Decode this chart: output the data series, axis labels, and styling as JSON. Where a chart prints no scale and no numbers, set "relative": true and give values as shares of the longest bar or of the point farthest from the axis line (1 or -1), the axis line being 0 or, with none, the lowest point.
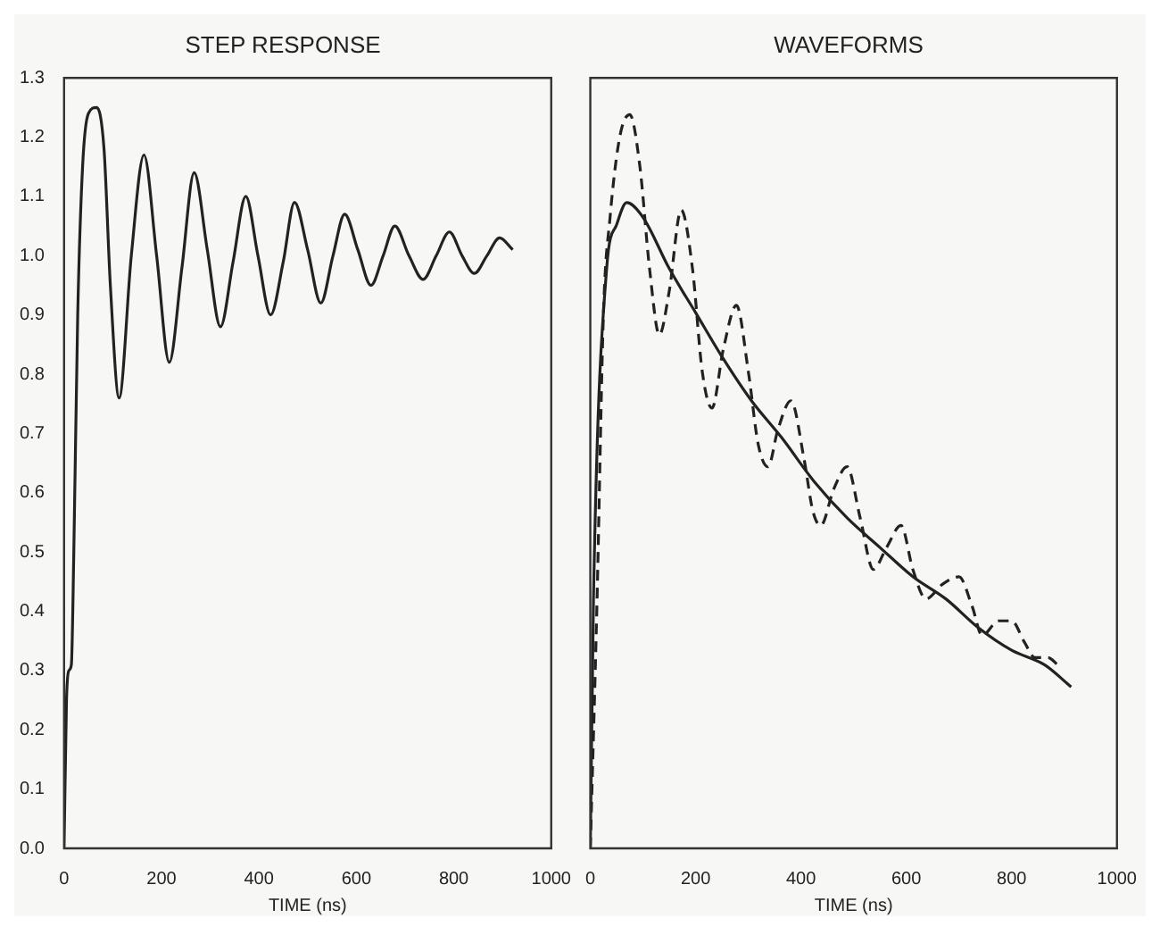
{
  "chart_data": [
    {
      "type": "line",
      "title": "STEP RESPONSE",
      "xlabel": "TIME (ns)",
      "xlim": [
        0,
        1000
      ],
      "xticks": [
        0,
        200,
        400,
        600,
        800,
        1000
      ],
      "ylim": [
        0,
        1.3
      ],
      "yticks": [
        {
          "value": 0,
          "label": "0.0"
        },
        0.1,
        0.2,
        0.3,
        0.4,
        0.5,
        0.6,
        0.7,
        0.8,
        0.9,
        {
          "value": 1,
          "label": "1.0"
        },
        1.1,
        1.2,
        1.3
      ],
      "grid": false,
      "legend": false,
      "marker": "none",
      "series": [
        {
          "color": "#222222",
          "line_style": "solid",
          "x": [
            0,
            5,
            10,
            15,
            20,
            28,
            38,
            50,
            67,
            82,
            95,
            113,
            138,
            164,
            190,
            216,
            242,
            267,
            294,
            321,
            347,
            373,
            398,
            424,
            450,
            473,
            500,
            527,
            552,
            576,
            603,
            630,
            655,
            679,
            708,
            737,
            764,
            791,
            817,
            842,
            868,
            894,
            921
          ],
          "values": [
            0,
            0.25,
            0.3,
            0.31,
            0.5,
            0.9,
            1.15,
            1.24,
            1.25,
            1.18,
            0.95,
            0.76,
            1.0,
            1.17,
            1.0,
            0.82,
            0.98,
            1.14,
            1.01,
            0.88,
            0.99,
            1.1,
            1.0,
            0.9,
            0.99,
            1.09,
            1.01,
            0.92,
            1.0,
            1.07,
            1.01,
            0.95,
            1.0,
            1.05,
            1.0,
            0.96,
            1.0,
            1.04,
            1.0,
            0.97,
            1.0,
            1.03,
            1.01
          ]
        }
      ]
    },
    {
      "type": "line",
      "title": "WAVEFORMS",
      "xlabel": "TIME (ns)",
      "xlim": [
        0,
        1000
      ],
      "xticks": [
        0,
        200,
        400,
        600,
        800,
        1000
      ],
      "relative": true,
      "tick_labels": "x",
      "grid": false,
      "legend": false,
      "marker": "none",
      "series": [
        {
          "color": "#222222",
          "line_style": "solid",
          "x": [
            0,
            6,
            31,
            50,
            69,
            100,
            150,
            200,
            250,
            306,
            363,
            425,
            488,
            550,
            613,
            675,
            738,
            800,
            863,
            913
          ],
          "values": [
            0,
            0.34,
            0.79,
            0.85,
            0.88,
            0.86,
            0.79,
            0.73,
            0.67,
            0.61,
            0.56,
            0.5,
            0.45,
            0.41,
            0.37,
            0.34,
            0.3,
            0.27,
            0.25,
            0.22
          ]
        },
        {
          "color": "#222222",
          "line_style": "dashed",
          "x": [
            0,
            12.5,
            25,
            37.5,
            56,
            75,
            94,
            112.5,
            131,
            150,
            172.5,
            194,
            212.5,
            231,
            252.5,
            277.5,
            300,
            319,
            337.5,
            356,
            381,
            406,
            422.5,
            437.5,
            462.5,
            487.5,
            512.5,
            537.5,
            562.5,
            590,
            612.5,
            637.5,
            669,
            700,
            725,
            744,
            775,
            800,
            825,
            844,
            869,
            887.5
          ],
          "values": [
            0,
            0.33,
            0.73,
            0.86,
            0.97,
            1.0,
            0.93,
            0.79,
            0.7,
            0.76,
            0.87,
            0.79,
            0.65,
            0.6,
            0.68,
            0.74,
            0.65,
            0.55,
            0.52,
            0.57,
            0.61,
            0.53,
            0.46,
            0.44,
            0.49,
            0.52,
            0.45,
            0.38,
            0.41,
            0.44,
            0.38,
            0.34,
            0.36,
            0.37,
            0.33,
            0.29,
            0.31,
            0.31,
            0.28,
            0.26,
            0.26,
            0.25
          ]
        }
      ]
    }
  ]
}
